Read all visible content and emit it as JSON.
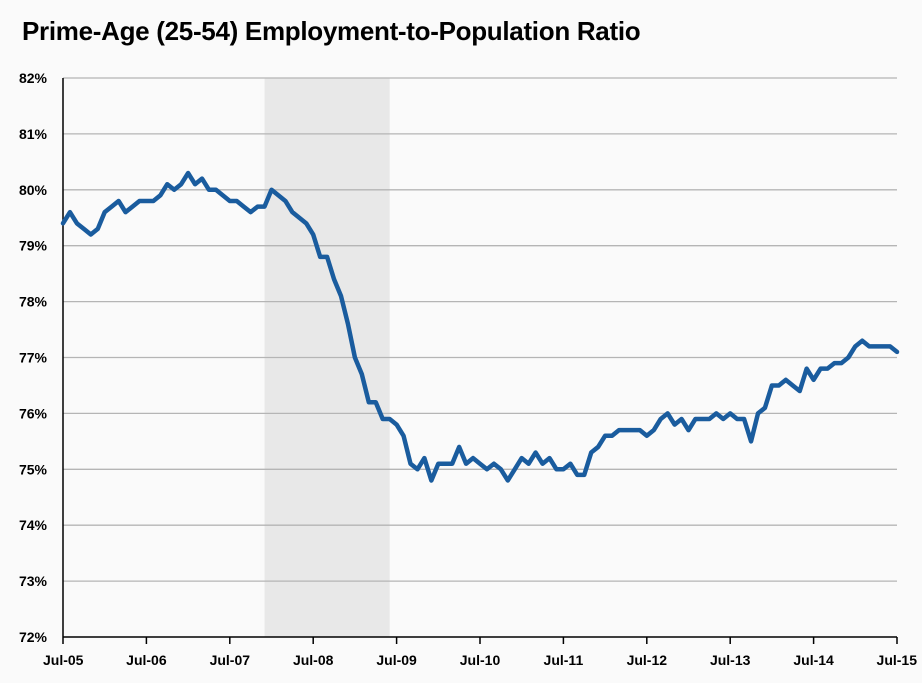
{
  "chart_data": {
    "type": "line",
    "title": "Prime-Age (25-54) Employment-to-Population Ratio",
    "xlabel": "",
    "ylabel": "",
    "ylim": [
      72,
      82
    ],
    "yticks": [
      72,
      73,
      74,
      75,
      76,
      77,
      78,
      79,
      80,
      81,
      82
    ],
    "ytick_labels": [
      "72%",
      "73%",
      "74%",
      "75%",
      "76%",
      "77%",
      "78%",
      "79%",
      "80%",
      "81%",
      "82%"
    ],
    "xtick_labels": [
      "Jul-05",
      "Jul-06",
      "Jul-07",
      "Jul-08",
      "Jul-09",
      "Jul-10",
      "Jul-11",
      "Jul-12",
      "Jul-13",
      "Jul-14",
      "Jul-15"
    ],
    "x_start": "Jul-05",
    "x_end": "Jul-15",
    "grid": "horizontal",
    "shaded_region": {
      "from": "Dec-07",
      "to": "Jun-09"
    },
    "series": [
      {
        "color": "#1a5c9e",
        "values": [
          79.4,
          79.6,
          79.4,
          79.3,
          79.2,
          79.3,
          79.6,
          79.7,
          79.8,
          79.6,
          79.7,
          79.8,
          79.8,
          79.8,
          79.9,
          80.1,
          80.0,
          80.1,
          80.3,
          80.1,
          80.2,
          80.0,
          80.0,
          79.9,
          79.8,
          79.8,
          79.7,
          79.6,
          79.7,
          79.7,
          80.0,
          79.9,
          79.8,
          79.6,
          79.5,
          79.4,
          79.2,
          78.8,
          78.8,
          78.4,
          78.1,
          77.6,
          77.0,
          76.7,
          76.2,
          76.2,
          75.9,
          75.9,
          75.8,
          75.6,
          75.1,
          75.0,
          75.2,
          74.8,
          75.1,
          75.1,
          75.1,
          75.4,
          75.1,
          75.2,
          75.1,
          75.0,
          75.1,
          75.0,
          74.8,
          75.0,
          75.2,
          75.1,
          75.3,
          75.1,
          75.2,
          75.0,
          75.0,
          75.1,
          74.9,
          74.9,
          75.3,
          75.4,
          75.6,
          75.6,
          75.7,
          75.7,
          75.7,
          75.7,
          75.6,
          75.7,
          75.9,
          76.0,
          75.8,
          75.9,
          75.7,
          75.9,
          75.9,
          75.9,
          76.0,
          75.9,
          76.0,
          75.9,
          75.9,
          75.5,
          76.0,
          76.1,
          76.5,
          76.5,
          76.6,
          76.5,
          76.4,
          76.8,
          76.6,
          76.8,
          76.8,
          76.9,
          76.9,
          77.0,
          77.2,
          77.3,
          77.2,
          77.2,
          77.2,
          77.2,
          77.1
        ]
      }
    ]
  }
}
